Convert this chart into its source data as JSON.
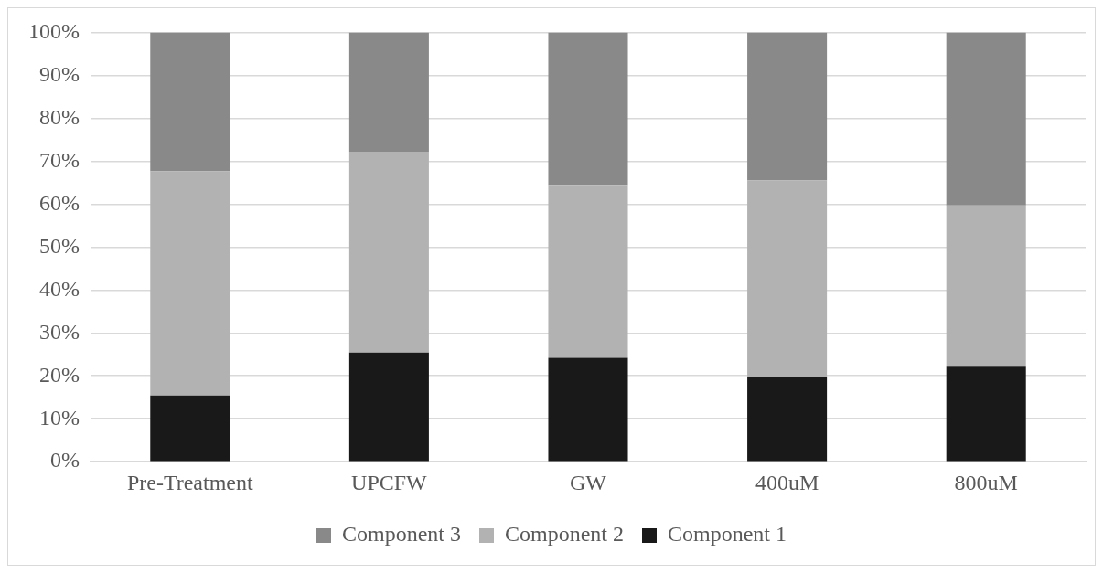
{
  "chart_data": {
    "type": "bar",
    "stacked": true,
    "categories": [
      "Pre-Treatment",
      "UPCFW",
      "GW",
      "400uM",
      "800uM"
    ],
    "series": [
      {
        "name": "Component 1",
        "color": "#191919",
        "values": [
          15.4,
          25.4,
          24.2,
          19.6,
          22.1
        ]
      },
      {
        "name": "Component 2",
        "color": "#b2b2b2",
        "values": [
          52.2,
          46.8,
          40.3,
          45.9,
          37.6
        ]
      },
      {
        "name": "Component 3",
        "color": "#898989",
        "values": [
          32.4,
          27.8,
          35.5,
          34.5,
          40.3
        ]
      }
    ],
    "ylim": [
      0,
      100
    ],
    "yticks": [
      {
        "value": 0,
        "label": "0%"
      },
      {
        "value": 10,
        "label": "10%"
      },
      {
        "value": 20,
        "label": "20%"
      },
      {
        "value": 30,
        "label": "30%"
      },
      {
        "value": 40,
        "label": "40%"
      },
      {
        "value": 50,
        "label": "50%"
      },
      {
        "value": 60,
        "label": "60%"
      },
      {
        "value": 70,
        "label": "70%"
      },
      {
        "value": 80,
        "label": "80%"
      },
      {
        "value": 90,
        "label": "90%"
      },
      {
        "value": 100,
        "label": "100%"
      }
    ],
    "grid": "y",
    "legend": "bottom"
  }
}
